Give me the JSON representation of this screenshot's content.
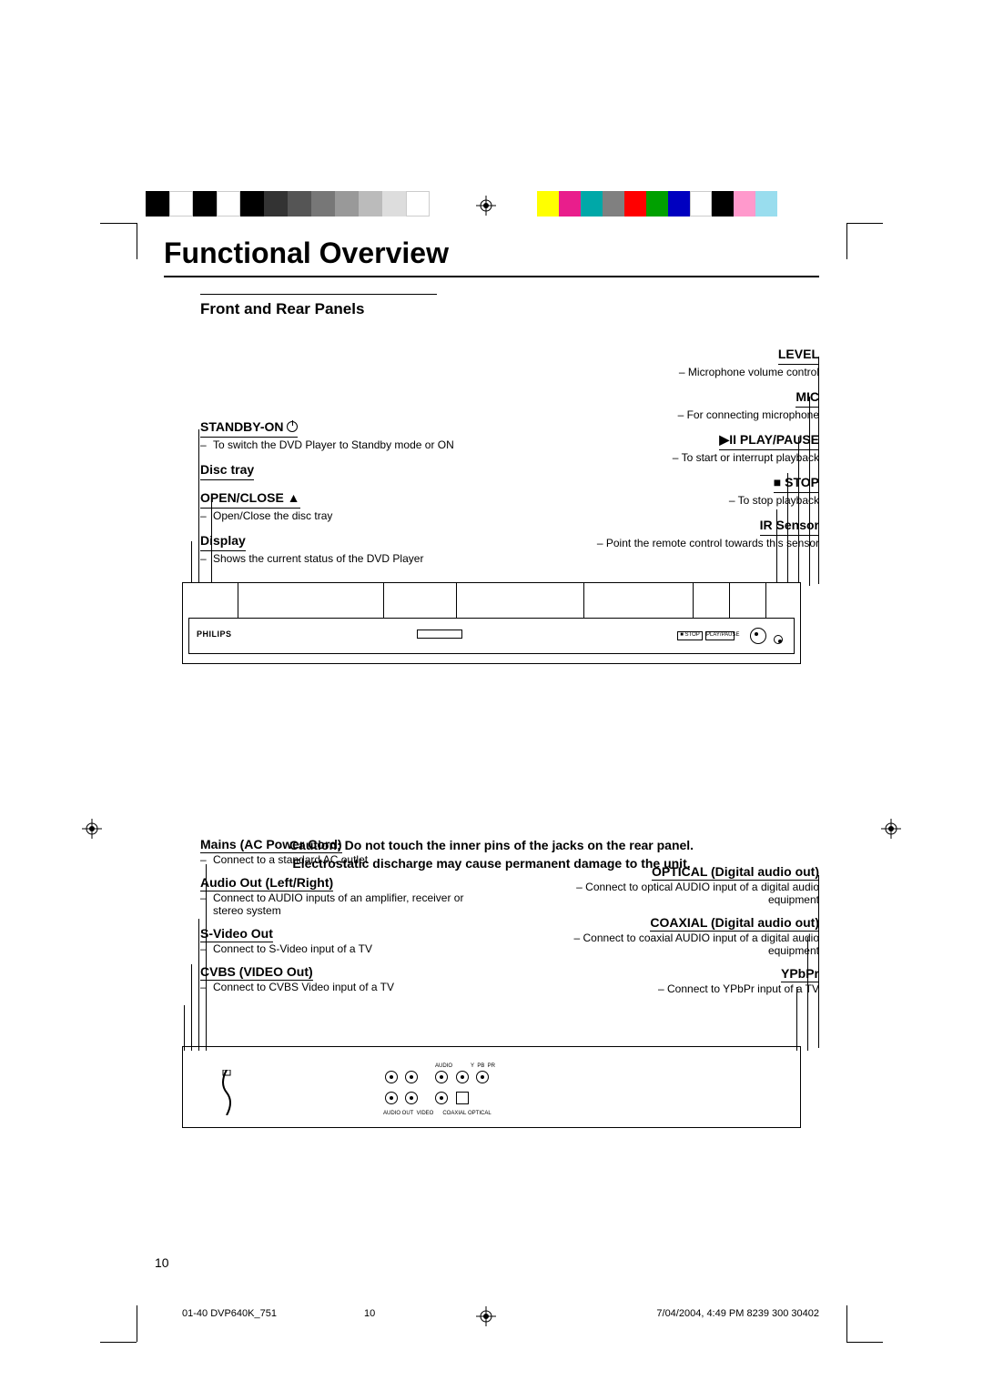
{
  "title": "Functional Overview",
  "subtitle": "Front and Rear Panels",
  "front": {
    "left": [
      {
        "title": "STANDBY-ON",
        "icon": "power",
        "desc": [
          "To switch the DVD Player to Standby mode or ON"
        ]
      },
      {
        "title": "Disc tray",
        "desc": []
      },
      {
        "title": "OPEN/CLOSE",
        "icon": "eject",
        "desc": [
          "Open/Close the disc tray"
        ]
      },
      {
        "title": "Display",
        "desc": [
          "Shows the current status of the DVD Player"
        ]
      }
    ],
    "right": [
      {
        "title": "LEVEL",
        "desc": [
          "Microphone volume control"
        ]
      },
      {
        "title": "MIC",
        "desc": [
          "For connecting microphone"
        ]
      },
      {
        "title": "PLAY/PAUSE",
        "prefix": "▶II ",
        "desc": [
          "To start or interrupt playback"
        ]
      },
      {
        "title": "STOP",
        "prefix": "■ ",
        "desc": [
          "To stop playback"
        ]
      },
      {
        "title": "IR Sensor",
        "desc": [
          "Point the remote control towards this sensor"
        ]
      }
    ],
    "brand": "PHILIPS"
  },
  "rear": {
    "left": [
      {
        "title": "Mains (AC Power Cord)",
        "desc": [
          "Connect to a standard AC outlet"
        ]
      },
      {
        "title": "Audio Out (Left/Right)",
        "desc": [
          "Connect to AUDIO inputs of an amplifier, receiver or stereo system"
        ]
      },
      {
        "title": "S-Video Out",
        "desc": [
          "Connect to S-Video input of a TV"
        ]
      },
      {
        "title": "CVBS (VIDEO Out)",
        "desc": [
          "Connect to CVBS Video input of a TV"
        ]
      }
    ],
    "right": [
      {
        "title": "OPTICAL (Digital audio out)",
        "desc": [
          "Connect to optical AUDIO input of a digital audio equipment"
        ]
      },
      {
        "title": "COAXIAL (Digital audio out)",
        "desc": [
          "Connect to coaxial AUDIO input of a digital audio equipment"
        ]
      },
      {
        "title": "YPbPr",
        "desc": [
          "Connect to YPbPr input of a TV"
        ]
      }
    ]
  },
  "caution_line1": "Caution: Do not touch the inner pins of the jacks on the rear panel.",
  "caution_line2": "Electrostatic discharge may cause permanent damage to the unit.",
  "page_number": "10",
  "footer_left": "01-40 DVP640K_751",
  "footer_mid": "10",
  "footer_right": "7/04/2004, 4:49 PM  8239 300 30402",
  "color_strip_left": [
    "#000000",
    "#ffffff",
    "#000000",
    "#ffffff",
    "#000000",
    "#333333",
    "#555555",
    "#777777",
    "#999999",
    "#bbbbbb",
    "#dddddd",
    "#ffffff"
  ],
  "color_strip_right": [
    "#ffff00",
    "#e91e8c",
    "#00a8a8",
    "#808080",
    "#ff0000",
    "#00a000",
    "#0000c0",
    "#ffffff",
    "#000000",
    "#ff99cc",
    "#99ddee"
  ]
}
